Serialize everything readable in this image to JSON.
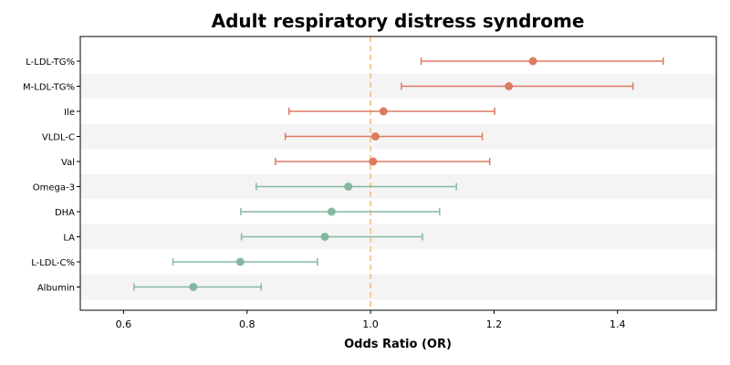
{
  "chart_data": {
    "type": "scatter",
    "title": "Adult respiratory distress syndrome",
    "xlabel": "Odds Ratio (OR)",
    "ylabel": "",
    "xlim": [
      0.53,
      1.56
    ],
    "xticks": [
      0.6,
      0.8,
      1.0,
      1.2,
      1.4
    ],
    "xtick_labels": [
      "0.6",
      "0.8",
      "1.0",
      "1.2",
      "1.4"
    ],
    "reference_line": 1.0,
    "grid": false,
    "row_shading": "alternating",
    "colors": {
      "risk": "#dd7a62",
      "protective": "#86b8a1",
      "reference": "#f0c07a",
      "band": "#f4f4f4"
    },
    "rows": [
      {
        "label": "L-LDL-TG%",
        "or": 1.263,
        "lower": 1.082,
        "upper": 1.474,
        "group": "risk"
      },
      {
        "label": "M-LDL-TG%",
        "or": 1.224,
        "lower": 1.05,
        "upper": 1.425,
        "group": "risk"
      },
      {
        "label": "Ile",
        "or": 1.021,
        "lower": 0.868,
        "upper": 1.201,
        "group": "risk"
      },
      {
        "label": "VLDL-C",
        "or": 1.008,
        "lower": 0.862,
        "upper": 1.181,
        "group": "risk"
      },
      {
        "label": "Val",
        "or": 1.004,
        "lower": 0.846,
        "upper": 1.193,
        "group": "risk"
      },
      {
        "label": "Omega-3",
        "or": 0.964,
        "lower": 0.815,
        "upper": 1.139,
        "group": "protective"
      },
      {
        "label": "DHA",
        "or": 0.937,
        "lower": 0.79,
        "upper": 1.112,
        "group": "protective"
      },
      {
        "label": "LA",
        "or": 0.926,
        "lower": 0.791,
        "upper": 1.084,
        "group": "protective"
      },
      {
        "label": "L-LDL-C%",
        "or": 0.789,
        "lower": 0.68,
        "upper": 0.914,
        "group": "protective"
      },
      {
        "label": "Albumin",
        "or": 0.713,
        "lower": 0.617,
        "upper": 0.823,
        "group": "protective"
      }
    ]
  }
}
